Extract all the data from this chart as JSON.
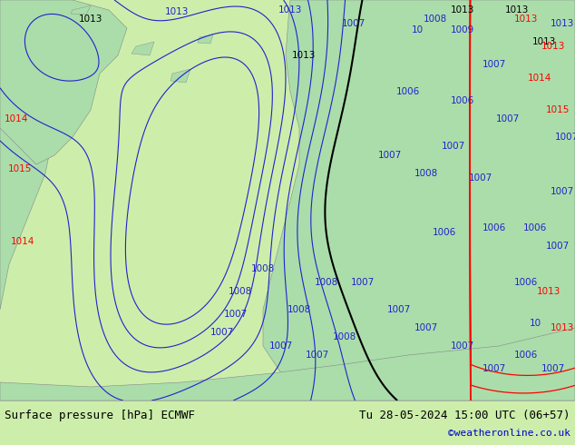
{
  "title_left": "Surface pressure [hPa] ECMWF",
  "title_right": "Tu 28-05-2024 15:00 UTC (06+57)",
  "credit": "©weatheronline.co.uk",
  "credit_color": "#0000cc",
  "bg_land_color": "#aaddaa",
  "bg_sea_color": "#d8d8d8",
  "footer_bg": "#cceeaa",
  "footer_text_color": "#000000",
  "fig_width": 6.34,
  "fig_height": 4.9,
  "dpi": 100
}
